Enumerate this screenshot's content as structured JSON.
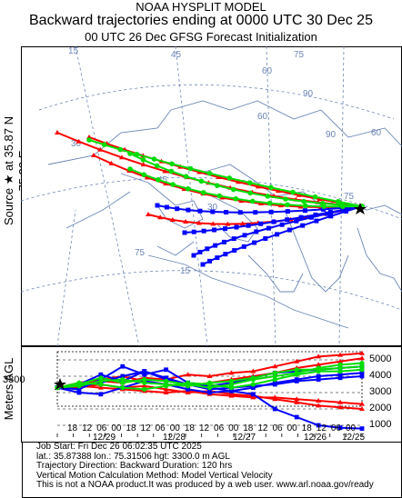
{
  "header": {
    "model": "NOAA HYSPLIT MODEL",
    "title": "Backward trajectories ending at 0000 UTC 30 Dec 25",
    "subtitle": "00 UTC 26 Dec    GFSG  Forecast Initialization"
  },
  "source_label": "Source ★ at   35.87 N   75.32 E",
  "vertical_label": "Meters AGL",
  "map_grid_labels": [
    "15",
    "30",
    "45",
    "60",
    "75",
    "90",
    "60",
    "45",
    "30",
    "15",
    "75",
    "60",
    "75",
    "90"
  ],
  "chart_data": {
    "type": "line",
    "title": "Backward trajectories ending at 0000 UTC 30 Dec 25",
    "ylabel": "Meters AGL",
    "start_height_label": "3300",
    "y_ticks": [
      "5000",
      "4000",
      "3000",
      "2000",
      "1000"
    ],
    "ylim": [
      500,
      5500
    ],
    "x_hour_ticks": [
      "18",
      "12",
      "06",
      "00",
      "18",
      "12",
      "06",
      "00",
      "18",
      "12",
      "06",
      "00",
      "18",
      "12",
      "06",
      "00",
      "18",
      "12",
      "06",
      "00"
    ],
    "x_date_ticks": [
      "12/29",
      "12/28",
      "12/27",
      "12/26",
      "12/25"
    ],
    "series_colors": [
      "#ff0000",
      "#0000ff",
      "#00dd00"
    ],
    "series": [
      {
        "color": "#ff0000",
        "values": [
          3300,
          3500,
          3700,
          3600,
          3900,
          3800,
          4100,
          4000,
          4200,
          4300,
          4600,
          4900,
          5200,
          5300,
          5400
        ]
      },
      {
        "color": "#ff0000",
        "values": [
          3300,
          3400,
          3300,
          3200,
          3100,
          3000,
          3100,
          2900,
          2800,
          2700,
          2700,
          2600,
          2500,
          2400,
          2300
        ]
      },
      {
        "color": "#ff0000",
        "values": [
          3300,
          3300,
          3500,
          3300,
          3400,
          3200,
          3000,
          3100,
          2900,
          2800,
          2600,
          2400,
          2200,
          2100,
          2000
        ]
      },
      {
        "color": "#ff0000",
        "values": [
          3300,
          3600,
          3800,
          4000,
          3700,
          3500,
          3400,
          3600,
          3800,
          4000,
          4200,
          4500,
          4700,
          4900,
          5100
        ]
      },
      {
        "color": "#0000ff",
        "values": [
          3300,
          3200,
          3800,
          4600,
          4100,
          4400,
          3600,
          3300,
          3100,
          2900,
          2000,
          1500,
          1000,
          850,
          800
        ]
      },
      {
        "color": "#0000ff",
        "values": [
          3300,
          3500,
          4100,
          3700,
          4300,
          3900,
          3500,
          3400,
          3600,
          3900,
          4200,
          4300,
          4400,
          4500,
          4600
        ]
      },
      {
        "color": "#0000ff",
        "values": [
          3300,
          3400,
          3600,
          4000,
          4300,
          3800,
          3500,
          3200,
          3300,
          3400,
          3500,
          3700,
          3800,
          3900,
          4000
        ]
      },
      {
        "color": "#0000ff",
        "values": [
          3300,
          3000,
          2900,
          3300,
          3700,
          3500,
          3200,
          3000,
          3100,
          3300,
          3600,
          3800,
          4000,
          4100,
          4200
        ]
      },
      {
        "color": "#00dd00",
        "values": [
          3300,
          3500,
          3900,
          3600,
          3800,
          3700,
          3500,
          3300,
          3500,
          3800,
          4000,
          4200,
          4500,
          4700,
          4800
        ]
      },
      {
        "color": "#00dd00",
        "values": [
          3300,
          3400,
          3700,
          3800,
          3600,
          3500,
          3400,
          3600,
          3700,
          3900,
          4200,
          4400,
          4400,
          4500,
          4600
        ]
      },
      {
        "color": "#00dd00",
        "values": [
          3300,
          3600,
          3500,
          3300,
          3200,
          3400,
          3600,
          3500,
          3300,
          3500,
          3800,
          4100,
          4300,
          4300,
          4400
        ]
      }
    ]
  },
  "footer": {
    "line1": "Job Start: Fri Dec 26 06:02:35 UTC 2025",
    "line2": "lat.: 35.87388   lon.: 75.31506   hgt: 3300.0 m AGL",
    "line3": "Trajectory Direction: Backward        Duration: 120 hrs",
    "line4": "Vertical Motion Calculation Method: Model Vertical Velocity",
    "line5": "This is not a NOAA product.It was produced by a web user. www.arl.noaa.gov/ready"
  }
}
